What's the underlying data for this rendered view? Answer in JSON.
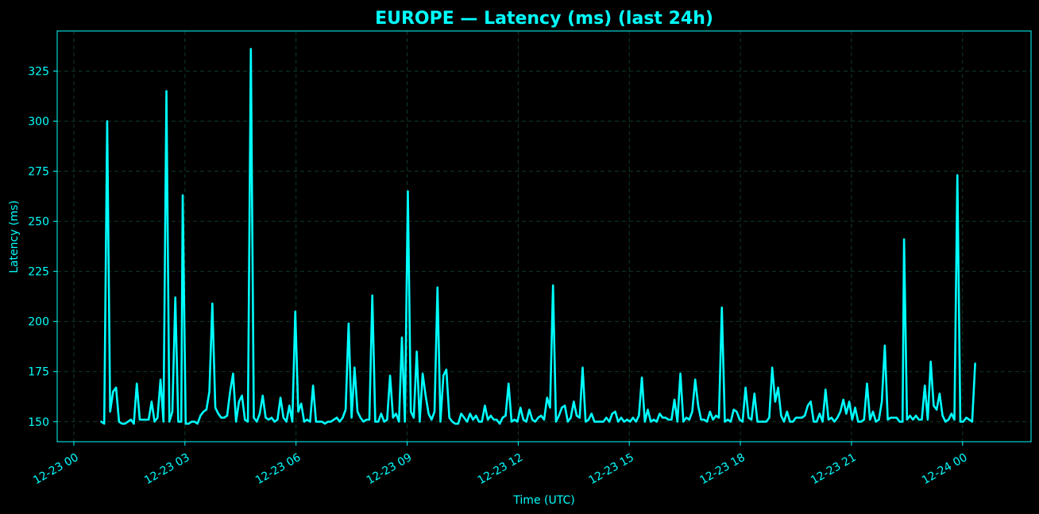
{
  "chart_data": {
    "type": "line",
    "title": "EUROPE — Latency (ms) (last 24h)",
    "xlabel": "Time (UTC)",
    "ylabel": "Latency (ms)",
    "xlim_hours": [
      -0.45,
      25.85
    ],
    "ylim": [
      140,
      345
    ],
    "grid": true,
    "y_ticks": [
      150,
      175,
      200,
      225,
      250,
      275,
      300,
      325
    ],
    "x_ticks": [
      {
        "hour": 0,
        "label": "12-23 00"
      },
      {
        "hour": 3,
        "label": "12-23 03"
      },
      {
        "hour": 6,
        "label": "12-23 06"
      },
      {
        "hour": 9,
        "label": "12-23 09"
      },
      {
        "hour": 12,
        "label": "12-23 12"
      },
      {
        "hour": 15,
        "label": "12-23 15"
      },
      {
        "hour": 18,
        "label": "12-23 18"
      },
      {
        "hour": 21,
        "label": "12-23 21"
      },
      {
        "hour": 24,
        "label": "12-24 00"
      }
    ],
    "series": [
      {
        "name": "",
        "color": "#00ffff",
        "points": [
          [
            0.74,
            150
          ],
          [
            0.82,
            149
          ],
          [
            0.9,
            300
          ],
          [
            0.98,
            155
          ],
          [
            1.06,
            165
          ],
          [
            1.14,
            167
          ],
          [
            1.22,
            150
          ],
          [
            1.3,
            149
          ],
          [
            1.38,
            149
          ],
          [
            1.46,
            150
          ],
          [
            1.54,
            151
          ],
          [
            1.62,
            149
          ],
          [
            1.7,
            169
          ],
          [
            1.78,
            151
          ],
          [
            1.86,
            151
          ],
          [
            1.94,
            151
          ],
          [
            2.02,
            151
          ],
          [
            2.1,
            160
          ],
          [
            2.18,
            150
          ],
          [
            2.26,
            152
          ],
          [
            2.34,
            171
          ],
          [
            2.42,
            150
          ],
          [
            2.5,
            315
          ],
          [
            2.58,
            150
          ],
          [
            2.66,
            155
          ],
          [
            2.74,
            212
          ],
          [
            2.82,
            150
          ],
          [
            2.9,
            150
          ],
          [
            2.94,
            263
          ],
          [
            3.02,
            149
          ],
          [
            3.1,
            149
          ],
          [
            3.18,
            150
          ],
          [
            3.26,
            150
          ],
          [
            3.34,
            149
          ],
          [
            3.42,
            153
          ],
          [
            3.5,
            155
          ],
          [
            3.58,
            156
          ],
          [
            3.66,
            165
          ],
          [
            3.74,
            209
          ],
          [
            3.82,
            157
          ],
          [
            3.9,
            154
          ],
          [
            3.98,
            152
          ],
          [
            4.06,
            152
          ],
          [
            4.14,
            153
          ],
          [
            4.22,
            165
          ],
          [
            4.3,
            174
          ],
          [
            4.38,
            150
          ],
          [
            4.46,
            160
          ],
          [
            4.54,
            163
          ],
          [
            4.62,
            151
          ],
          [
            4.7,
            150
          ],
          [
            4.78,
            336
          ],
          [
            4.86,
            152
          ],
          [
            4.94,
            150
          ],
          [
            5.02,
            154
          ],
          [
            5.1,
            163
          ],
          [
            5.18,
            152
          ],
          [
            5.26,
            151
          ],
          [
            5.34,
            152
          ],
          [
            5.42,
            150
          ],
          [
            5.5,
            151
          ],
          [
            5.58,
            162
          ],
          [
            5.66,
            152
          ],
          [
            5.74,
            150
          ],
          [
            5.82,
            158
          ],
          [
            5.9,
            150
          ],
          [
            5.98,
            205
          ],
          [
            6.06,
            155
          ],
          [
            6.14,
            159
          ],
          [
            6.22,
            150
          ],
          [
            6.3,
            151
          ],
          [
            6.38,
            150
          ],
          [
            6.46,
            168
          ],
          [
            6.54,
            150
          ],
          [
            6.62,
            150
          ],
          [
            6.7,
            150
          ],
          [
            6.78,
            149
          ],
          [
            6.86,
            150
          ],
          [
            6.94,
            150
          ],
          [
            7.02,
            151
          ],
          [
            7.1,
            152
          ],
          [
            7.18,
            150
          ],
          [
            7.26,
            152
          ],
          [
            7.34,
            156
          ],
          [
            7.42,
            199
          ],
          [
            7.5,
            152
          ],
          [
            7.58,
            177
          ],
          [
            7.66,
            155
          ],
          [
            7.74,
            152
          ],
          [
            7.82,
            150
          ],
          [
            7.9,
            151
          ],
          [
            7.98,
            151
          ],
          [
            8.06,
            213
          ],
          [
            8.14,
            150
          ],
          [
            8.22,
            150
          ],
          [
            8.3,
            154
          ],
          [
            8.38,
            150
          ],
          [
            8.46,
            151
          ],
          [
            8.54,
            173
          ],
          [
            8.62,
            152
          ],
          [
            8.7,
            154
          ],
          [
            8.78,
            150
          ],
          [
            8.86,
            192
          ],
          [
            8.94,
            150
          ],
          [
            9.02,
            265
          ],
          [
            9.1,
            155
          ],
          [
            9.18,
            152
          ],
          [
            9.26,
            185
          ],
          [
            9.34,
            150
          ],
          [
            9.42,
            174
          ],
          [
            9.5,
            163
          ],
          [
            9.58,
            154
          ],
          [
            9.66,
            151
          ],
          [
            9.74,
            155
          ],
          [
            9.82,
            217
          ],
          [
            9.9,
            150
          ],
          [
            9.98,
            173
          ],
          [
            10.06,
            176
          ],
          [
            10.14,
            152
          ],
          [
            10.22,
            150
          ],
          [
            10.3,
            149
          ],
          [
            10.38,
            149
          ],
          [
            10.46,
            154
          ],
          [
            10.54,
            152
          ],
          [
            10.62,
            150
          ],
          [
            10.7,
            154
          ],
          [
            10.78,
            151
          ],
          [
            10.86,
            153
          ],
          [
            10.94,
            150
          ],
          [
            11.02,
            150
          ],
          [
            11.1,
            158
          ],
          [
            11.18,
            151
          ],
          [
            11.26,
            153
          ],
          [
            11.34,
            151
          ],
          [
            11.42,
            151
          ],
          [
            11.5,
            149
          ],
          [
            11.58,
            152
          ],
          [
            11.66,
            153
          ],
          [
            11.74,
            169
          ],
          [
            11.82,
            150
          ],
          [
            11.9,
            151
          ],
          [
            11.98,
            150
          ],
          [
            12.06,
            157
          ],
          [
            12.14,
            151
          ],
          [
            12.22,
            150
          ],
          [
            12.3,
            156
          ],
          [
            12.38,
            151
          ],
          [
            12.46,
            150
          ],
          [
            12.54,
            152
          ],
          [
            12.62,
            153
          ],
          [
            12.7,
            151
          ],
          [
            12.78,
            162
          ],
          [
            12.86,
            157
          ],
          [
            12.94,
            218
          ],
          [
            13.02,
            150
          ],
          [
            13.1,
            153
          ],
          [
            13.18,
            157
          ],
          [
            13.26,
            158
          ],
          [
            13.34,
            150
          ],
          [
            13.42,
            152
          ],
          [
            13.5,
            160
          ],
          [
            13.58,
            153
          ],
          [
            13.66,
            152
          ],
          [
            13.74,
            177
          ],
          [
            13.82,
            150
          ],
          [
            13.9,
            151
          ],
          [
            13.98,
            154
          ],
          [
            14.06,
            150
          ],
          [
            14.14,
            150
          ],
          [
            14.22,
            150
          ],
          [
            14.3,
            150
          ],
          [
            14.38,
            152
          ],
          [
            14.46,
            150
          ],
          [
            14.54,
            154
          ],
          [
            14.62,
            155
          ],
          [
            14.7,
            150
          ],
          [
            14.78,
            152
          ],
          [
            14.86,
            150
          ],
          [
            14.94,
            151
          ],
          [
            15.02,
            150
          ],
          [
            15.1,
            152
          ],
          [
            15.18,
            150
          ],
          [
            15.26,
            153
          ],
          [
            15.34,
            172
          ],
          [
            15.42,
            150
          ],
          [
            15.5,
            156
          ],
          [
            15.58,
            150
          ],
          [
            15.66,
            151
          ],
          [
            15.74,
            150
          ],
          [
            15.82,
            154
          ],
          [
            15.9,
            152
          ],
          [
            15.98,
            152
          ],
          [
            16.06,
            151
          ],
          [
            16.14,
            151
          ],
          [
            16.22,
            161
          ],
          [
            16.3,
            150
          ],
          [
            16.38,
            174
          ],
          [
            16.46,
            150
          ],
          [
            16.54,
            152
          ],
          [
            16.62,
            151
          ],
          [
            16.7,
            155
          ],
          [
            16.78,
            171
          ],
          [
            16.86,
            158
          ],
          [
            16.94,
            151
          ],
          [
            17.02,
            151
          ],
          [
            17.1,
            150
          ],
          [
            17.18,
            155
          ],
          [
            17.26,
            151
          ],
          [
            17.34,
            153
          ],
          [
            17.42,
            152
          ],
          [
            17.5,
            207
          ],
          [
            17.58,
            150
          ],
          [
            17.66,
            151
          ],
          [
            17.74,
            150
          ],
          [
            17.82,
            156
          ],
          [
            17.9,
            155
          ],
          [
            17.98,
            151
          ],
          [
            18.06,
            150
          ],
          [
            18.14,
            167
          ],
          [
            18.22,
            152
          ],
          [
            18.3,
            151
          ],
          [
            18.38,
            164
          ],
          [
            18.46,
            150
          ],
          [
            18.54,
            150
          ],
          [
            18.62,
            150
          ],
          [
            18.7,
            150
          ],
          [
            18.78,
            152
          ],
          [
            18.86,
            177
          ],
          [
            18.94,
            160
          ],
          [
            19.02,
            167
          ],
          [
            19.1,
            153
          ],
          [
            19.18,
            150
          ],
          [
            19.26,
            155
          ],
          [
            19.34,
            150
          ],
          [
            19.42,
            150
          ],
          [
            19.5,
            152
          ],
          [
            19.58,
            152
          ],
          [
            19.66,
            152
          ],
          [
            19.74,
            153
          ],
          [
            19.82,
            158
          ],
          [
            19.9,
            160
          ],
          [
            19.98,
            150
          ],
          [
            20.06,
            150
          ],
          [
            20.14,
            154
          ],
          [
            20.22,
            150
          ],
          [
            20.3,
            166
          ],
          [
            20.38,
            151
          ],
          [
            20.46,
            152
          ],
          [
            20.54,
            150
          ],
          [
            20.62,
            152
          ],
          [
            20.7,
            155
          ],
          [
            20.78,
            161
          ],
          [
            20.86,
            154
          ],
          [
            20.94,
            160
          ],
          [
            21.02,
            151
          ],
          [
            21.1,
            157
          ],
          [
            21.18,
            150
          ],
          [
            21.26,
            150
          ],
          [
            21.34,
            151
          ],
          [
            21.42,
            169
          ],
          [
            21.5,
            151
          ],
          [
            21.58,
            155
          ],
          [
            21.66,
            150
          ],
          [
            21.74,
            151
          ],
          [
            21.82,
            160
          ],
          [
            21.9,
            188
          ],
          [
            21.98,
            151
          ],
          [
            22.06,
            152
          ],
          [
            22.14,
            152
          ],
          [
            22.22,
            152
          ],
          [
            22.3,
            150
          ],
          [
            22.38,
            150
          ],
          [
            22.42,
            241
          ],
          [
            22.5,
            151
          ],
          [
            22.58,
            153
          ],
          [
            22.66,
            151
          ],
          [
            22.74,
            153
          ],
          [
            22.82,
            151
          ],
          [
            22.9,
            151
          ],
          [
            22.98,
            168
          ],
          [
            23.06,
            151
          ],
          [
            23.14,
            180
          ],
          [
            23.22,
            158
          ],
          [
            23.3,
            156
          ],
          [
            23.38,
            164
          ],
          [
            23.46,
            153
          ],
          [
            23.54,
            150
          ],
          [
            23.62,
            151
          ],
          [
            23.7,
            154
          ],
          [
            23.78,
            151
          ],
          [
            23.86,
            273
          ],
          [
            23.94,
            150
          ],
          [
            24.02,
            150
          ],
          [
            24.1,
            152
          ],
          [
            24.18,
            151
          ],
          [
            24.26,
            150
          ],
          [
            24.34,
            179
          ]
        ]
      }
    ]
  },
  "colors": {
    "background": "#000000",
    "foreground": "#00ffff",
    "grid": "#0e3a22"
  }
}
